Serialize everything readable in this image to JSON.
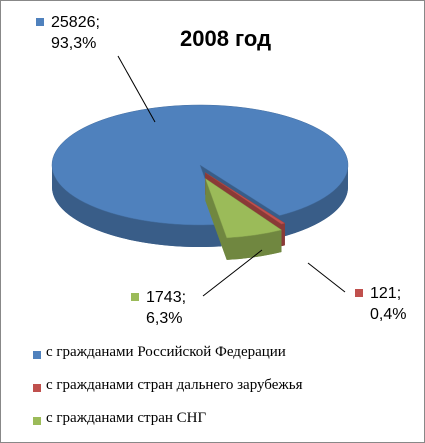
{
  "chart_data": {
    "type": "pie",
    "title": "2008 год",
    "categories": [
      "с гражданами Российской Федерации",
      "с гражданами стран дальнего зарубежья",
      "с гражданами стран СНГ"
    ],
    "values": [
      25826,
      121,
      1743
    ],
    "value_labels": [
      "25826;\n93,3%",
      "121;\n0,4%",
      "1743;\n6,3%"
    ],
    "colors": [
      "#4F81BD",
      "#C0504D",
      "#9BBB59"
    ]
  }
}
